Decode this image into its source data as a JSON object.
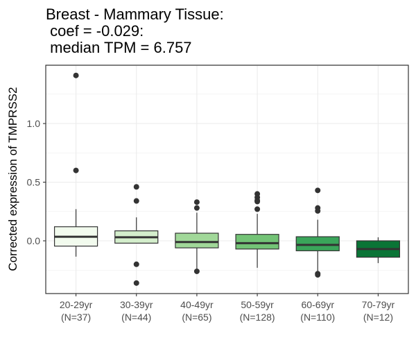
{
  "chart_data": {
    "type": "box",
    "title_lines": [
      "Breast - Mammary Tissue:",
      " coef = -0.029:",
      " median TPM = 6.757"
    ],
    "xlabel": "",
    "ylabel": "Corrected expression of TMPRSS2",
    "ylim": [
      -0.45,
      1.5
    ],
    "y_ticks": [
      0.0,
      0.5,
      1.0
    ],
    "y_tick_labels": [
      "0.0",
      "0.5",
      "1.0"
    ],
    "grid": true,
    "categories": [
      {
        "label": "20-29yr",
        "n_label": "(N=37)"
      },
      {
        "label": "30-39yr",
        "n_label": "(N=44)"
      },
      {
        "label": "40-49yr",
        "n_label": "(N=65)"
      },
      {
        "label": "50-59yr",
        "n_label": "(N=128)"
      },
      {
        "label": "60-69yr",
        "n_label": "(N=110)"
      },
      {
        "label": "70-79yr",
        "n_label": "(N=12)"
      }
    ],
    "boxes": [
      {
        "q1": -0.045,
        "median": 0.035,
        "q3": 0.12,
        "whisker_low": -0.135,
        "whisker_high": 0.27,
        "outliers": [
          1.41,
          0.6
        ],
        "color": "#f2fbee"
      },
      {
        "q1": -0.02,
        "median": 0.03,
        "q3": 0.085,
        "whisker_low": -0.02,
        "whisker_high": 0.2,
        "outliers": [
          0.46,
          0.34,
          -0.2,
          -0.36
        ],
        "color": "#d4eecc"
      },
      {
        "q1": -0.06,
        "median": -0.01,
        "q3": 0.065,
        "whisker_low": -0.25,
        "whisker_high": 0.24,
        "outliers": [
          0.33,
          0.28,
          -0.26
        ],
        "color": "#a1d899"
      },
      {
        "q1": -0.07,
        "median": -0.02,
        "q3": 0.055,
        "whisker_low": -0.23,
        "whisker_high": 0.23,
        "outliers": [
          0.4,
          0.37,
          0.345,
          0.335,
          0.27
        ],
        "color": "#73c376"
      },
      {
        "q1": -0.085,
        "median": -0.035,
        "q3": 0.035,
        "whisker_low": -0.27,
        "whisker_high": 0.18,
        "outliers": [
          0.43,
          0.28,
          0.255,
          -0.28,
          -0.29
        ],
        "color": "#3aa55a"
      },
      {
        "q1": -0.14,
        "median": -0.07,
        "q3": 0.0,
        "whisker_low": -0.19,
        "whisker_high": 0.03,
        "outliers": [],
        "color": "#0a7436"
      }
    ]
  }
}
